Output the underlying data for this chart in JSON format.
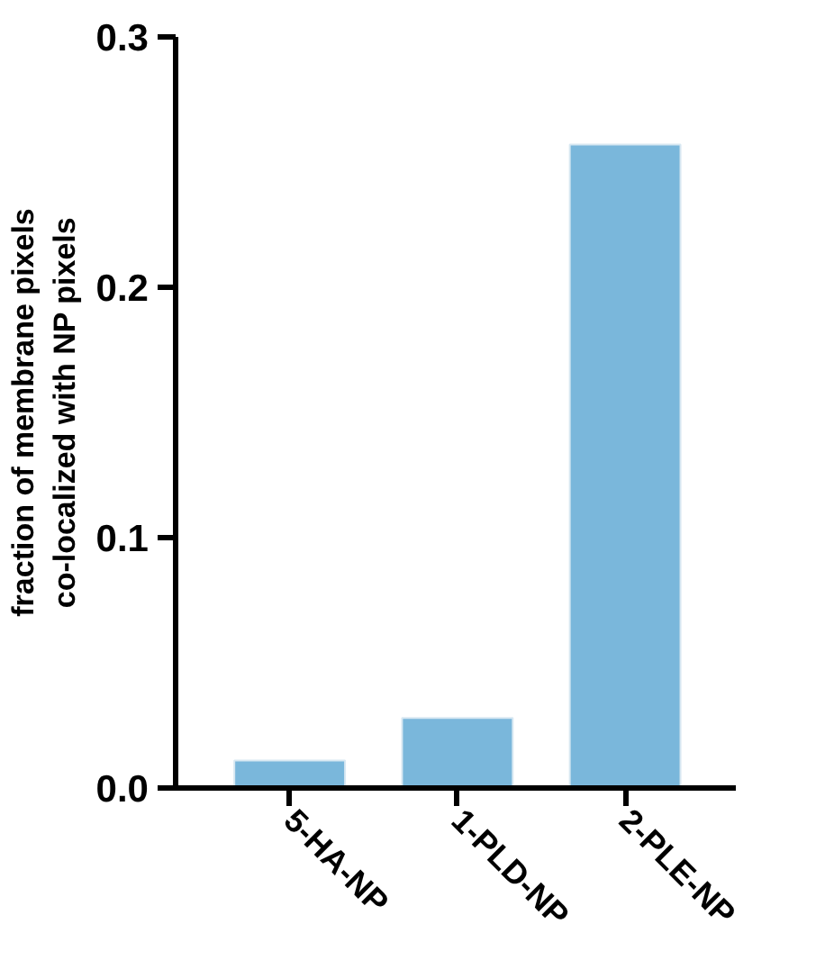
{
  "chart_data": {
    "type": "bar",
    "ylabel": "fraction of membrane pixels co-localized with NP pixels",
    "categories": [
      "5-HA-NP",
      "1-PLD-NP",
      "2-PLE-NP"
    ],
    "values": [
      0.011,
      0.028,
      0.257
    ],
    "color": "#7ab7db",
    "ylim": [
      0,
      0.3
    ],
    "yticks": [
      {
        "value": 0,
        "label": "0.0"
      },
      0.1,
      0.2,
      0.3
    ],
    "grid": false
  }
}
